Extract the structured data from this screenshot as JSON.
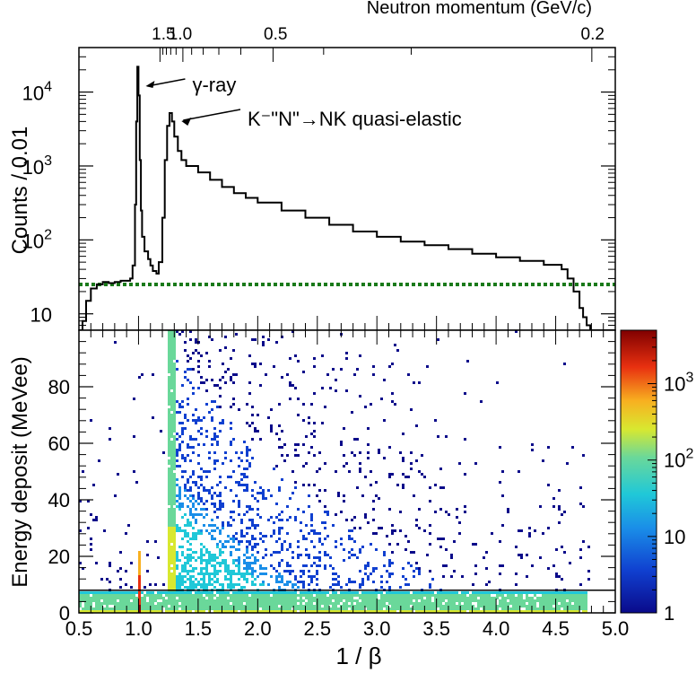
{
  "chart_data": [
    {
      "type": "line",
      "title": "",
      "xlabel": "",
      "ylabel": "Counts / 0.01",
      "top_axis": {
        "label": "Neutron momentum (GeV/c)",
        "ticks": [
          {
            "label": "1.5",
            "inv_beta": 1.21
          },
          {
            "label": "1.0",
            "inv_beta": 1.35
          },
          {
            "label": "0.5",
            "inv_beta": 2.15
          },
          {
            "label": "0.2",
            "inv_beta": 4.81
          }
        ]
      },
      "xlim": [
        0.5,
        5.0
      ],
      "ylim": [
        6,
        40000
      ],
      "y_scale": "log",
      "y_ticks": [
        {
          "value": 10,
          "base": "10",
          "exp": ""
        },
        {
          "value": 100,
          "base": "10",
          "exp": "2"
        },
        {
          "value": 1000,
          "base": "10",
          "exp": "3"
        },
        {
          "value": 10000,
          "base": "10",
          "exp": "4"
        }
      ],
      "series": [
        {
          "x": [
            0.5,
            0.53,
            0.56,
            0.6,
            0.65,
            0.7,
            0.75,
            0.8,
            0.85,
            0.9,
            0.93,
            0.95,
            0.97,
            0.98,
            0.99,
            1.0,
            1.01,
            1.02,
            1.03,
            1.05,
            1.08,
            1.1,
            1.12,
            1.15,
            1.17,
            1.2,
            1.22,
            1.24,
            1.26,
            1.28,
            1.3,
            1.33,
            1.36,
            1.4,
            1.5,
            1.6,
            1.7,
            1.8,
            1.9,
            2.0,
            2.2,
            2.4,
            2.6,
            2.8,
            3.0,
            3.2,
            3.4,
            3.6,
            3.8,
            4.0,
            4.2,
            4.4,
            4.55,
            4.6,
            4.65,
            4.7,
            4.73,
            4.76,
            4.79,
            4.82
          ],
          "values": [
            6,
            8,
            15,
            22,
            25,
            27,
            26,
            27,
            28,
            28,
            30,
            45,
            300,
            4000,
            22000,
            9000,
            1200,
            250,
            110,
            70,
            55,
            45,
            38,
            35,
            50,
            200,
            1200,
            3500,
            5200,
            4000,
            2500,
            1600,
            1200,
            1000,
            820,
            650,
            520,
            430,
            370,
            320,
            250,
            200,
            160,
            130,
            110,
            95,
            85,
            75,
            65,
            58,
            52,
            46,
            40,
            30,
            20,
            12,
            9,
            7,
            6,
            5
          ]
        }
      ],
      "reference_line": {
        "y": 25,
        "color": "#1a7a1a",
        "style": "dashed"
      },
      "annotations": [
        {
          "text": "γ-ray",
          "x": 1.0,
          "y": 18000
        },
        {
          "text": "K⁻\"N\"→NK quasi-elastic",
          "x": 1.3,
          "y": 5200
        }
      ],
      "grid": false,
      "color": "#000000"
    },
    {
      "type": "heatmap",
      "title": "",
      "xlabel": "1 / β",
      "ylabel": "Energy deposit (MeVee)",
      "xlim": [
        0.5,
        5.0
      ],
      "ylim": [
        0,
        100
      ],
      "x_ticks": [
        "0.5",
        "1.0",
        "1.5",
        "2.0",
        "2.5",
        "3.0",
        "3.5",
        "4.0",
        "4.5",
        "5.0"
      ],
      "y_ticks": [
        "0",
        "20",
        "40",
        "60",
        "80"
      ],
      "threshold_line": {
        "y": 8
      },
      "color_scale": {
        "type": "log",
        "range": [
          1,
          5000
        ],
        "ticks": [
          {
            "value": 1,
            "label": "1",
            "exp": ""
          },
          {
            "value": 10,
            "label": "10",
            "exp": ""
          },
          {
            "value": 100,
            "label": "10",
            "exp": "2"
          },
          {
            "value": 1000,
            "label": "10",
            "exp": "3"
          }
        ]
      },
      "features": [
        {
          "kind": "vertical-band",
          "x": 1.0,
          "width": 0.03,
          "intensity": "high",
          "ymax": 22
        },
        {
          "kind": "vertical-band",
          "x": 1.27,
          "width": 0.06,
          "intensity": "medium",
          "ymax": 100
        },
        {
          "kind": "horizontal-band",
          "y_range": [
            0,
            8
          ],
          "x_range": [
            0.5,
            4.75
          ],
          "intensity": "medium"
        }
      ],
      "grid": false
    }
  ]
}
